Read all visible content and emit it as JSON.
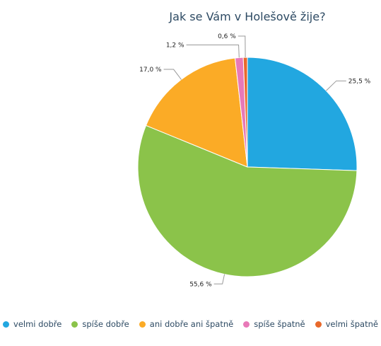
{
  "chart_data": {
    "type": "pie",
    "title": "Jak se Vám v Holešově žije?",
    "legend_position": "bottom",
    "slices": [
      {
        "name": "velmi dobře",
        "value": 25.5,
        "label": "25,5 %",
        "color": "#22a7e0"
      },
      {
        "name": "spíše dobře",
        "value": 55.6,
        "label": "55,6 %",
        "color": "#8bc34a"
      },
      {
        "name": "ani dobře ani špatně",
        "value": 17.0,
        "label": "17,0 %",
        "color": "#fbab26"
      },
      {
        "name": "spíše špatně",
        "value": 1.2,
        "label": "1,2 %",
        "color": "#e879b8"
      },
      {
        "name": "velmi špatně",
        "value": 0.6,
        "label": "0,6 %",
        "color": "#e8692b"
      }
    ]
  }
}
